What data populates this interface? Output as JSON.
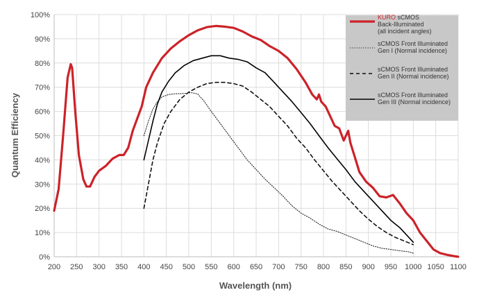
{
  "chart_data": {
    "type": "line",
    "xlabel": "Wavelength (nm)",
    "ylabel": "Quantum Efficiency",
    "xlim": [
      200,
      1100
    ],
    "ylim": [
      0,
      100
    ],
    "grid": true,
    "legend_position": "top-right",
    "x_ticks": [
      "200",
      "250",
      "300",
      "350",
      "400",
      "450",
      "500",
      "550",
      "600",
      "650",
      "700",
      "750",
      "800",
      "850",
      "900",
      "950",
      "1000",
      "1050",
      "1100"
    ],
    "y_ticks": [
      "0%",
      "10%",
      "20%",
      "30%",
      "40%",
      "50%",
      "60%",
      "70%",
      "80%",
      "90%",
      "100%"
    ],
    "series": [
      {
        "name": "KURO sCMOS Back-Illuminated (all incident angles)",
        "color": "#cc2229",
        "style": "solid-thick",
        "points": [
          [
            200,
            19
          ],
          [
            210,
            28
          ],
          [
            220,
            50
          ],
          [
            230,
            74
          ],
          [
            237,
            79.5
          ],
          [
            240,
            78
          ],
          [
            247,
            60
          ],
          [
            255,
            42
          ],
          [
            265,
            32
          ],
          [
            272,
            29
          ],
          [
            280,
            29
          ],
          [
            290,
            33
          ],
          [
            300,
            35.5
          ],
          [
            315,
            37.5
          ],
          [
            330,
            40.5
          ],
          [
            345,
            42
          ],
          [
            355,
            42
          ],
          [
            365,
            45
          ],
          [
            375,
            52
          ],
          [
            385,
            57
          ],
          [
            395,
            62
          ],
          [
            405,
            70
          ],
          [
            420,
            76
          ],
          [
            440,
            82
          ],
          [
            460,
            86
          ],
          [
            480,
            89
          ],
          [
            500,
            91.5
          ],
          [
            520,
            93.5
          ],
          [
            540,
            94.8
          ],
          [
            560,
            95.3
          ],
          [
            580,
            95
          ],
          [
            600,
            94.5
          ],
          [
            620,
            93
          ],
          [
            640,
            91
          ],
          [
            660,
            89.5
          ],
          [
            680,
            87
          ],
          [
            700,
            85
          ],
          [
            720,
            82
          ],
          [
            740,
            77.5
          ],
          [
            760,
            72
          ],
          [
            775,
            67
          ],
          [
            785,
            65
          ],
          [
            790,
            67
          ],
          [
            795,
            64
          ],
          [
            805,
            62
          ],
          [
            815,
            58
          ],
          [
            825,
            54
          ],
          [
            835,
            53
          ],
          [
            845,
            48
          ],
          [
            855,
            52
          ],
          [
            860,
            47
          ],
          [
            870,
            41
          ],
          [
            880,
            35
          ],
          [
            895,
            31
          ],
          [
            910,
            28.5
          ],
          [
            925,
            25
          ],
          [
            940,
            24.5
          ],
          [
            955,
            25.5
          ],
          [
            970,
            22
          ],
          [
            985,
            18
          ],
          [
            1000,
            15
          ],
          [
            1015,
            10
          ],
          [
            1030,
            6.5
          ],
          [
            1045,
            3
          ],
          [
            1060,
            1.5
          ],
          [
            1075,
            0.8
          ],
          [
            1090,
            0.3
          ],
          [
            1100,
            0
          ]
        ]
      },
      {
        "name": "sCMOS Front Illuminated Gen I (Normal incidence)",
        "color": "#222222",
        "style": "dotted",
        "points": [
          [
            400,
            50
          ],
          [
            410,
            56
          ],
          [
            420,
            61
          ],
          [
            430,
            64
          ],
          [
            440,
            66
          ],
          [
            455,
            67
          ],
          [
            470,
            67.3
          ],
          [
            490,
            67.4
          ],
          [
            505,
            67.8
          ],
          [
            520,
            67.2
          ],
          [
            535,
            64
          ],
          [
            550,
            60
          ],
          [
            570,
            55
          ],
          [
            590,
            50
          ],
          [
            610,
            45
          ],
          [
            630,
            40
          ],
          [
            650,
            36
          ],
          [
            670,
            32
          ],
          [
            690,
            28.5
          ],
          [
            710,
            25
          ],
          [
            730,
            21
          ],
          [
            750,
            18
          ],
          [
            770,
            16
          ],
          [
            790,
            13.5
          ],
          [
            810,
            11.5
          ],
          [
            830,
            10.5
          ],
          [
            850,
            9
          ],
          [
            870,
            7.5
          ],
          [
            890,
            6
          ],
          [
            910,
            4.5
          ],
          [
            930,
            3.5
          ],
          [
            950,
            3
          ],
          [
            970,
            2.5
          ],
          [
            990,
            2
          ],
          [
            1000,
            1.5
          ]
        ]
      },
      {
        "name": "sCMOS Front Illuminated Gen II (Normal incidence)",
        "color": "#111111",
        "style": "dashed",
        "points": [
          [
            400,
            20
          ],
          [
            410,
            30
          ],
          [
            420,
            40
          ],
          [
            430,
            47
          ],
          [
            445,
            55
          ],
          [
            460,
            60
          ],
          [
            480,
            65
          ],
          [
            500,
            68
          ],
          [
            520,
            70
          ],
          [
            540,
            71.5
          ],
          [
            560,
            72
          ],
          [
            580,
            72
          ],
          [
            600,
            71.5
          ],
          [
            620,
            70.5
          ],
          [
            640,
            68
          ],
          [
            660,
            65
          ],
          [
            680,
            62
          ],
          [
            700,
            58
          ],
          [
            720,
            54
          ],
          [
            740,
            49
          ],
          [
            760,
            45
          ],
          [
            780,
            40
          ],
          [
            800,
            35.5
          ],
          [
            820,
            31
          ],
          [
            840,
            27
          ],
          [
            860,
            23
          ],
          [
            880,
            19
          ],
          [
            900,
            15.5
          ],
          [
            920,
            12.5
          ],
          [
            940,
            10
          ],
          [
            960,
            8
          ],
          [
            980,
            6.5
          ],
          [
            1000,
            5
          ]
        ]
      },
      {
        "name": "sCMOS Front Illuminated Gen III (Normal incidence)",
        "color": "#000000",
        "style": "solid",
        "points": [
          [
            400,
            40
          ],
          [
            410,
            48
          ],
          [
            420,
            56
          ],
          [
            430,
            63
          ],
          [
            440,
            68
          ],
          [
            455,
            72.5
          ],
          [
            470,
            76
          ],
          [
            490,
            79
          ],
          [
            510,
            81
          ],
          [
            530,
            82
          ],
          [
            550,
            83
          ],
          [
            570,
            83
          ],
          [
            590,
            82
          ],
          [
            610,
            81.5
          ],
          [
            630,
            80.5
          ],
          [
            650,
            78
          ],
          [
            670,
            76
          ],
          [
            690,
            72
          ],
          [
            710,
            68
          ],
          [
            730,
            64
          ],
          [
            750,
            59.5
          ],
          [
            770,
            55
          ],
          [
            790,
            50
          ],
          [
            810,
            45
          ],
          [
            830,
            40.5
          ],
          [
            850,
            36
          ],
          [
            870,
            31
          ],
          [
            890,
            27
          ],
          [
            910,
            23
          ],
          [
            930,
            19
          ],
          [
            950,
            15
          ],
          [
            970,
            12
          ],
          [
            990,
            8
          ],
          [
            1000,
            6
          ]
        ]
      }
    ],
    "legend": [
      {
        "name_highlight": "KURO",
        "name_rest": " sCMOS",
        "lines": [
          "Back-Illuminated",
          "(all incident angles)"
        ],
        "style": "solid-thick",
        "color": "#cc2229"
      },
      {
        "lines": [
          "sCMOS Front Illuminated",
          "Gen I (Normal incidence)"
        ],
        "style": "dotted",
        "color": "#222222"
      },
      {
        "lines": [
          "sCMOS Front Illuminated",
          "Gen II (Normal incidence)"
        ],
        "style": "dashed",
        "color": "#111111"
      },
      {
        "lines": [
          "sCMOS Front Illuminated",
          "Gen III (Normal incidence)"
        ],
        "style": "solid",
        "color": "#000000"
      }
    ]
  }
}
